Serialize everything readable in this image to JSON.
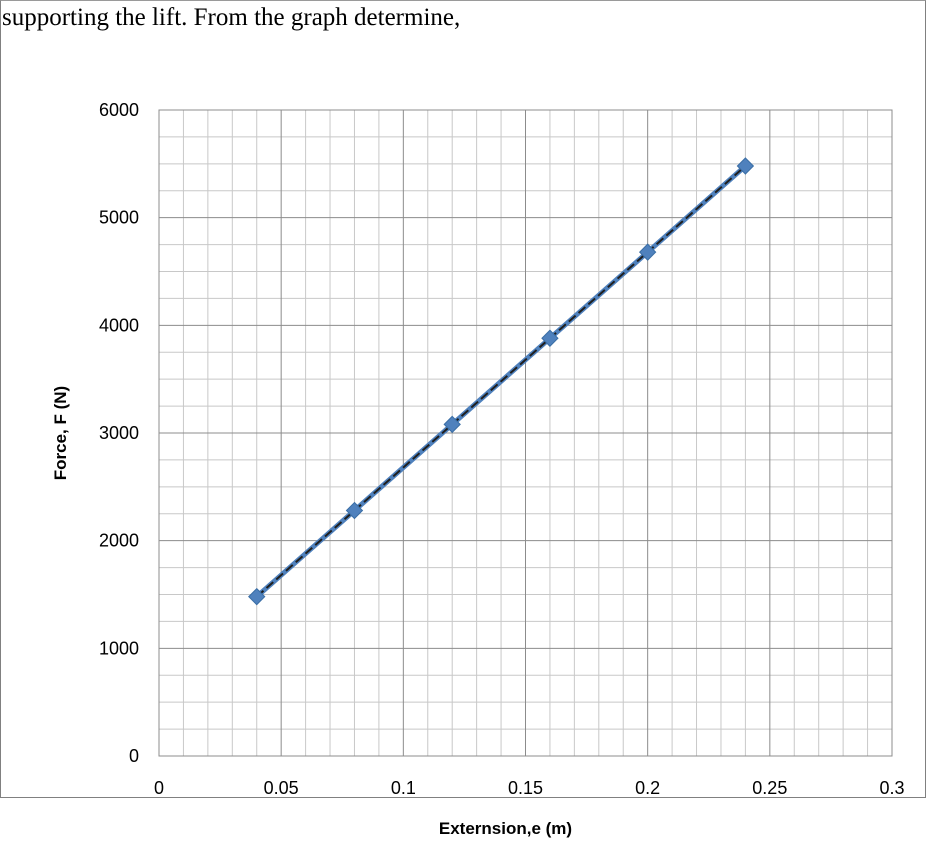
{
  "document": {
    "text_above": "supporting the lift. From the graph determine,"
  },
  "chart_data": {
    "type": "scatter",
    "title": "",
    "xlabel": "Externsion,e (m)",
    "ylabel": "Force, F (N)",
    "xlim": [
      0,
      0.3
    ],
    "ylim": [
      0,
      6000
    ],
    "x_major_step": 0.05,
    "y_major_step": 1000,
    "x_ticks": [
      "0",
      "0.05",
      "0.1",
      "0.15",
      "0.2",
      "0.25",
      "0.3"
    ],
    "y_ticks": [
      "0",
      "1000",
      "2000",
      "3000",
      "4000",
      "5000",
      "6000"
    ],
    "grid": true,
    "legend": "none",
    "trendline": "linear",
    "series": [
      {
        "x": [
          0.04,
          0.08,
          0.12,
          0.16,
          0.2,
          0.24
        ],
        "y": [
          1480,
          2280,
          3080,
          3880,
          4680,
          5480
        ],
        "marker": "diamond",
        "color": "#4f81bd"
      }
    ],
    "trendline_color": "#1f1f1f",
    "grid_major_color": "#8c8c8c",
    "grid_minor_color": "#c8c8c8"
  }
}
